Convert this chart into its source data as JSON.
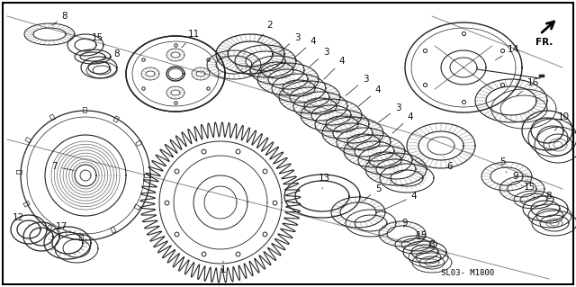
{
  "background_color": "#ffffff",
  "border_color": "#000000",
  "diagram_code": "SL03- M1800",
  "direction_label": "FR.",
  "fig_width": 6.4,
  "fig_height": 3.19,
  "dpi": 100,
  "img_bgcolor": "#f5f5f5",
  "line_color": "#222222",
  "parts": {
    "upper_diag_line": [
      [
        0.0,
        0.97
      ],
      [
        0.97,
        0.5
      ]
    ],
    "lower_diag_line": [
      [
        0.0,
        0.97
      ],
      [
        0.48,
        0.04
      ]
    ]
  }
}
